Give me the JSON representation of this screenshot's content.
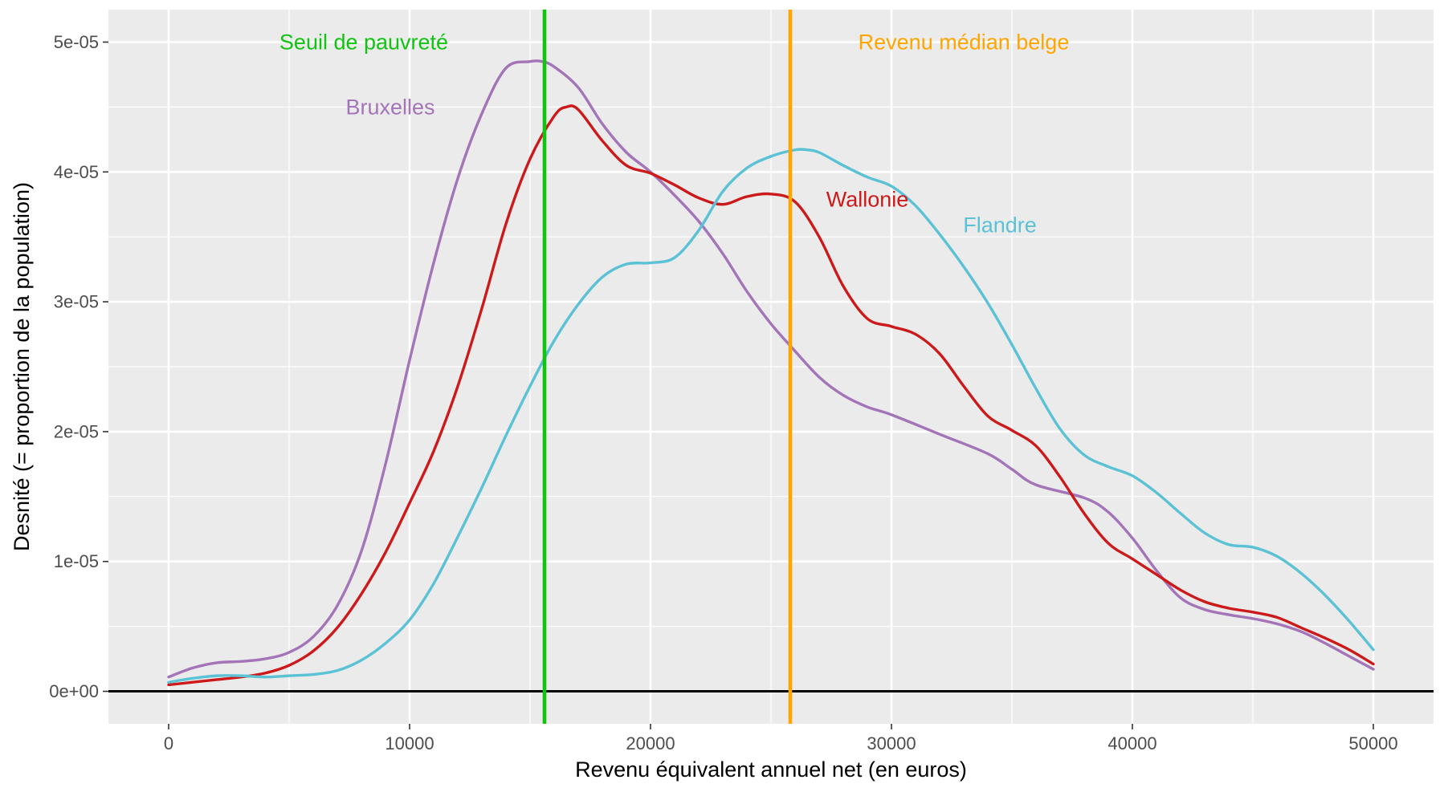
{
  "chart_data": {
    "type": "line",
    "title": "",
    "xlabel": "Revenu équivalent annuel net (en euros)",
    "ylabel": "Desnité (= proportion de la population)",
    "xlim": [
      -2500,
      52500
    ],
    "ylim": [
      -2.5e-06,
      5.25e-05
    ],
    "x_ticks": [
      0,
      10000,
      20000,
      30000,
      40000,
      50000
    ],
    "x_tick_labels": [
      "0",
      "10000",
      "20000",
      "30000",
      "40000",
      "50000"
    ],
    "y_ticks": [
      0,
      1e-05,
      2e-05,
      3e-05,
      4e-05,
      5e-05
    ],
    "y_tick_labels": [
      "0e+00",
      "1e-05",
      "2e-05",
      "3e-05",
      "4e-05",
      "5e-05"
    ],
    "grid": true,
    "background": "#ebebeb",
    "legend": "none",
    "series": [
      {
        "name": "Bruxelles",
        "color": "#a474b8",
        "x": [
          0,
          1000,
          2000,
          3000,
          4000,
          5000,
          6000,
          7000,
          8000,
          9000,
          10000,
          11000,
          12000,
          13000,
          14000,
          15000,
          15500,
          16000,
          17000,
          18000,
          19000,
          20000,
          21000,
          22000,
          23000,
          24000,
          25000,
          26000,
          27000,
          28000,
          29000,
          30000,
          32000,
          34000,
          35000,
          36000,
          38000,
          39000,
          40000,
          41000,
          42000,
          43000,
          44000,
          45000,
          46000,
          47000,
          48000,
          49000,
          50000
        ],
        "y": [
          1.1e-06,
          1.8e-06,
          2.2e-06,
          2.3e-06,
          2.5e-06,
          3e-06,
          4.2e-06,
          6.6e-06,
          1.08e-05,
          1.75e-05,
          2.55e-05,
          3.3e-05,
          3.95e-05,
          4.45e-05,
          4.8e-05,
          4.85e-05,
          4.85e-05,
          4.81e-05,
          4.65e-05,
          4.37e-05,
          4.15e-05,
          4e-05,
          3.82e-05,
          3.62e-05,
          3.37e-05,
          3.08e-05,
          2.83e-05,
          2.62e-05,
          2.42e-05,
          2.28e-05,
          2.19e-05,
          2.13e-05,
          1.98e-05,
          1.83e-05,
          1.71e-05,
          1.59e-05,
          1.49e-05,
          1.38e-05,
          1.18e-05,
          9.3e-06,
          7.2e-06,
          6.3e-06,
          5.9e-06,
          5.6e-06,
          5.2e-06,
          4.6e-06,
          3.7e-06,
          2.7e-06,
          1.7e-06
        ]
      },
      {
        "name": "Wallonie",
        "color": "#cc1a1a",
        "x": [
          0,
          1000,
          2000,
          3000,
          4000,
          5000,
          6000,
          7000,
          8000,
          9000,
          10000,
          11000,
          12000,
          13000,
          14000,
          15000,
          16000,
          16500,
          17000,
          18000,
          19000,
          20000,
          21000,
          22000,
          23000,
          24000,
          25000,
          26000,
          27000,
          28000,
          29000,
          30000,
          31000,
          32000,
          33000,
          34000,
          35000,
          36000,
          37000,
          38000,
          39000,
          40000,
          41000,
          42000,
          43000,
          44000,
          45000,
          46000,
          47000,
          48000,
          49000,
          50000
        ],
        "y": [
          5e-07,
          7e-07,
          9e-07,
          1.1e-06,
          1.4e-06,
          2e-06,
          3.1e-06,
          4.9e-06,
          7.5e-06,
          1.07e-05,
          1.45e-05,
          1.85e-05,
          2.35e-05,
          2.95e-05,
          3.6e-05,
          4.1e-05,
          4.43e-05,
          4.5e-05,
          4.48e-05,
          4.24e-05,
          4.05e-05,
          3.99e-05,
          3.9e-05,
          3.8e-05,
          3.75e-05,
          3.81e-05,
          3.83e-05,
          3.77e-05,
          3.5e-05,
          3.12e-05,
          2.87e-05,
          2.81e-05,
          2.75e-05,
          2.6e-05,
          2.35e-05,
          2.12e-05,
          2.01e-05,
          1.89e-05,
          1.65e-05,
          1.37e-05,
          1.14e-05,
          1.02e-05,
          9e-06,
          7.8e-06,
          6.9e-06,
          6.4e-06,
          6.1e-06,
          5.7e-06,
          4.9e-06,
          4.1e-06,
          3.2e-06,
          2.1e-06
        ]
      },
      {
        "name": "Flandre",
        "color": "#5bc2d6",
        "x": [
          0,
          1000,
          2000,
          3000,
          4000,
          5000,
          6000,
          7000,
          8000,
          9000,
          10000,
          11000,
          12000,
          13000,
          14000,
          15000,
          16000,
          17000,
          18000,
          19000,
          20000,
          21000,
          22000,
          23000,
          24000,
          25000,
          26000,
          26500,
          27000,
          28000,
          29000,
          30000,
          31000,
          32000,
          33000,
          34000,
          35000,
          36000,
          37000,
          38000,
          39000,
          40000,
          41000,
          42000,
          43000,
          44000,
          45000,
          46000,
          47000,
          48000,
          49000,
          50000
        ],
        "y": [
          7e-07,
          1e-06,
          1.2e-06,
          1.2e-06,
          1.1e-06,
          1.2e-06,
          1.3e-06,
          1.6e-06,
          2.4e-06,
          3.7e-06,
          5.5e-06,
          8.3e-06,
          1.19e-05,
          1.57e-05,
          1.97e-05,
          2.35e-05,
          2.7e-05,
          2.98e-05,
          3.19e-05,
          3.29e-05,
          3.3e-05,
          3.34e-05,
          3.55e-05,
          3.85e-05,
          4.03e-05,
          4.12e-05,
          4.17e-05,
          4.17e-05,
          4.15e-05,
          4.05e-05,
          3.96e-05,
          3.89e-05,
          3.74e-05,
          3.52e-05,
          3.27e-05,
          2.99e-05,
          2.67e-05,
          2.33e-05,
          2.02e-05,
          1.82e-05,
          1.73e-05,
          1.66e-05,
          1.53e-05,
          1.37e-05,
          1.22e-05,
          1.13e-05,
          1.11e-05,
          1.04e-05,
          9.1e-06,
          7.4e-06,
          5.4e-06,
          3.2e-06
        ]
      }
    ],
    "zero_line": {
      "y": 0,
      "color": "#000000"
    },
    "vertical_lines": [
      {
        "x": 15600,
        "color": "#11c411",
        "label": "Seuil de pauvreté",
        "label_x": 8100,
        "label_y": 5e-05
      },
      {
        "x": 25800,
        "color": "#ffa500",
        "label": "Revenu médian belge",
        "label_x": 33000,
        "label_y": 5e-05
      }
    ],
    "annotations": [
      {
        "text": "Bruxelles",
        "x": 9200,
        "y": 4.5e-05,
        "color": "#a474b8"
      },
      {
        "text": "Wallonie",
        "x": 29000,
        "y": 3.79e-05,
        "color": "#cc1a1a"
      },
      {
        "text": "Flandre",
        "x": 34500,
        "y": 3.59e-05,
        "color": "#5bc2d6"
      }
    ]
  }
}
